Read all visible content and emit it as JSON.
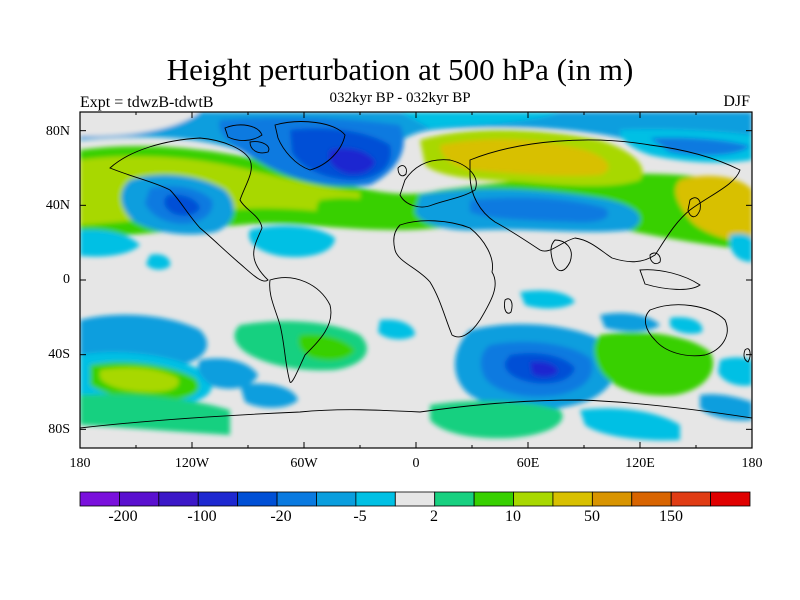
{
  "title": "Height perturbation at 500 hPa (in m)",
  "expt_label": "Expt = tdwzB-tdwtB",
  "period_label": "032kyr BP - 032kyr BP",
  "season_label": "DJF",
  "lat_ticks": [
    "80N",
    "40N",
    "0",
    "40S",
    "80S"
  ],
  "lon_ticks": [
    "180",
    "120W",
    "60W",
    "0",
    "60E",
    "120E",
    "180"
  ],
  "colorbar": {
    "colors": [
      "#7a10dc",
      "#5a10cf",
      "#3c18c8",
      "#1e28d0",
      "#0050d6",
      "#0a7ae0",
      "#0a9ede",
      "#00c0e4",
      "#e6e6e6",
      "#18d080",
      "#38d000",
      "#a8d800",
      "#d8c000",
      "#d89400",
      "#d86400",
      "#e03c14",
      "#e00000"
    ],
    "labels": [
      "-200",
      "-100",
      "-20",
      "-5",
      "2",
      "10",
      "50",
      "150"
    ]
  },
  "map_background": "#e6e6e6"
}
